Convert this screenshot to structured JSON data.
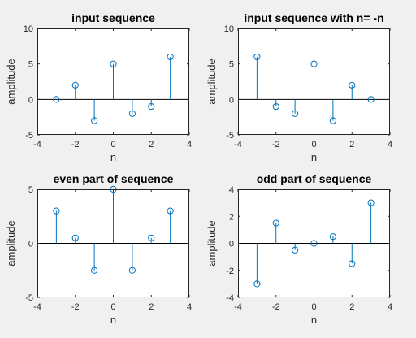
{
  "chart_data": [
    {
      "type": "stem",
      "title": "input sequence",
      "xlabel": "n",
      "ylabel": "amplitude",
      "xlim": [
        -4,
        4
      ],
      "ylim": [
        -5,
        10
      ],
      "xticks": [
        -4,
        -2,
        0,
        2,
        4
      ],
      "yticks": [
        -5,
        0,
        5,
        10
      ],
      "x": [
        -3,
        -2,
        -1,
        0,
        1,
        2,
        3
      ],
      "y": [
        0,
        2,
        -3,
        5,
        -2,
        -1,
        6
      ],
      "grid": false,
      "color": "#0072bd"
    },
    {
      "type": "stem",
      "title": "input sequence with n= -n",
      "xlabel": "n",
      "ylabel": "amplitude",
      "xlim": [
        -4,
        4
      ],
      "ylim": [
        -5,
        10
      ],
      "xticks": [
        -4,
        -2,
        0,
        2,
        4
      ],
      "yticks": [
        -5,
        0,
        5,
        10
      ],
      "x": [
        -3,
        -2,
        -1,
        0,
        1,
        2,
        3
      ],
      "y": [
        6,
        -1,
        -2,
        5,
        -3,
        2,
        0
      ],
      "grid": false,
      "color": "#0072bd"
    },
    {
      "type": "stem",
      "title": "even part of sequence",
      "xlabel": "n",
      "ylabel": "amplitude",
      "xlim": [
        -4,
        4
      ],
      "ylim": [
        -5,
        5
      ],
      "xticks": [
        -4,
        -2,
        0,
        2,
        4
      ],
      "yticks": [
        -5,
        0,
        5
      ],
      "x": [
        -3,
        -2,
        -1,
        0,
        1,
        2,
        3
      ],
      "y": [
        3,
        0.5,
        -2.5,
        5,
        -2.5,
        0.5,
        3
      ],
      "grid": false,
      "color": "#0072bd"
    },
    {
      "type": "stem",
      "title": "odd part of sequence",
      "xlabel": "n",
      "ylabel": "amplitude",
      "xlim": [
        -4,
        4
      ],
      "ylim": [
        -4,
        4
      ],
      "xticks": [
        -4,
        -2,
        0,
        2,
        4
      ],
      "yticks": [
        -4,
        -2,
        0,
        2,
        4
      ],
      "x": [
        -3,
        -2,
        -1,
        0,
        1,
        2,
        3
      ],
      "y": [
        -3,
        1.5,
        -0.5,
        0,
        0.5,
        -1.5,
        3
      ],
      "grid": false,
      "color": "#0072bd"
    }
  ]
}
